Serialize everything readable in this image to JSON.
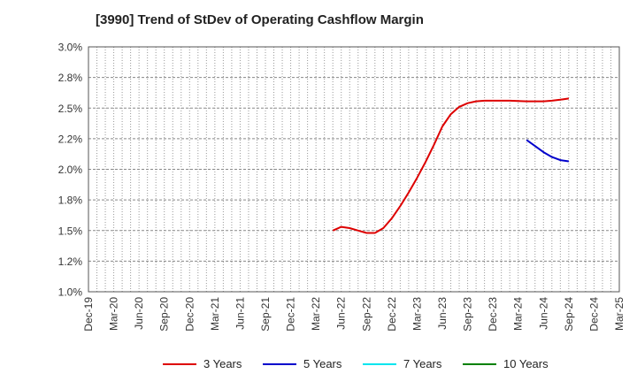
{
  "title": "[3990]  Trend of StDev of Operating Cashflow Margin",
  "chart_data": {
    "type": "line",
    "title": "[3990]  Trend of StDev of Operating Cashflow Margin",
    "xlabel": "",
    "ylabel": "",
    "ylim": [
      1.0,
      3.0
    ],
    "y_ticks": [
      "1.0%",
      "1.2%",
      "1.5%",
      "1.8%",
      "2.0%",
      "2.2%",
      "2.5%",
      "2.8%",
      "3.0%"
    ],
    "x_range": [
      "Dec-19",
      "Mar-25"
    ],
    "x_ticks": [
      "Dec-19",
      "Mar-20",
      "Jun-20",
      "Sep-20",
      "Dec-20",
      "Mar-21",
      "Jun-21",
      "Sep-21",
      "Dec-21",
      "Mar-22",
      "Jun-22",
      "Sep-22",
      "Dec-22",
      "Mar-23",
      "Jun-23",
      "Sep-23",
      "Dec-23",
      "Mar-24",
      "Jun-24",
      "Sep-24",
      "Dec-24",
      "Mar-25"
    ],
    "grid": true,
    "legend_position": "bottom",
    "series": [
      {
        "name": "3 Years",
        "color": "#dd0000",
        "x": [
          "2022-05",
          "2022-06",
          "2022-07",
          "2022-08",
          "2022-09",
          "2022-10",
          "2022-11",
          "2022-12",
          "2023-01",
          "2023-02",
          "2023-03",
          "2023-04",
          "2023-05",
          "2023-06",
          "2023-07",
          "2023-08",
          "2023-09",
          "2023-10",
          "2023-11",
          "2023-12",
          "2024-01",
          "2024-02",
          "2024-03",
          "2024-04",
          "2024-05",
          "2024-06",
          "2024-07",
          "2024-08",
          "2024-09"
        ],
        "values": [
          1.5,
          1.53,
          1.52,
          1.5,
          1.48,
          1.48,
          1.52,
          1.6,
          1.7,
          1.81,
          1.93,
          2.06,
          2.2,
          2.35,
          2.45,
          2.51,
          2.54,
          2.555,
          2.56,
          2.56,
          2.56,
          2.56,
          2.558,
          2.555,
          2.555,
          2.555,
          2.56,
          2.568,
          2.578
        ]
      },
      {
        "name": "5 Years",
        "color": "#0000cc",
        "x": [
          "2024-04",
          "2024-05",
          "2024-06",
          "2024-07",
          "2024-08",
          "2024-09"
        ],
        "values": [
          2.24,
          2.19,
          2.14,
          2.1,
          2.075,
          2.065
        ]
      },
      {
        "name": "7 Years",
        "color": "#00e5ee",
        "x": [],
        "values": []
      },
      {
        "name": "10 Years",
        "color": "#008000",
        "x": [],
        "values": []
      }
    ]
  }
}
